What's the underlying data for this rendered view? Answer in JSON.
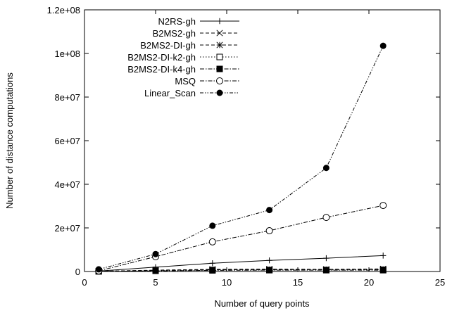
{
  "chart_data": {
    "type": "line",
    "title": "",
    "xlabel": "Number of query points",
    "ylabel": "Number of distance computations",
    "xlim": [
      0,
      25
    ],
    "ylim": [
      0,
      120000000
    ],
    "x_ticks": [
      0,
      5,
      10,
      15,
      20,
      25
    ],
    "x_tick_labels": [
      "0",
      "5",
      "10",
      "15",
      "20",
      "25"
    ],
    "y_ticks": [
      0,
      20000000,
      40000000,
      60000000,
      80000000,
      100000000,
      120000000
    ],
    "y_tick_labels": [
      "0",
      "2e+07",
      "4e+07",
      "6e+07",
      "8e+07",
      "1e+08",
      "1.2e+08"
    ],
    "legend_position": "top-left",
    "grid": false,
    "x": [
      1,
      5,
      9,
      13,
      17,
      21
    ],
    "series": [
      {
        "name": "N2RS-gh",
        "marker": "plus",
        "dash": "none",
        "values": [
          200000,
          2000000,
          3800000,
          5100000,
          6100000,
          7300000
        ]
      },
      {
        "name": "B2MS2-gh",
        "marker": "cross",
        "dash": "dashed",
        "values": [
          100000,
          600000,
          1000000,
          1100000,
          1000000,
          1200000
        ]
      },
      {
        "name": "B2MS2-DI-gh",
        "marker": "star",
        "dash": "dashed",
        "values": [
          100000,
          500000,
          800000,
          900000,
          900000,
          1000000
        ]
      },
      {
        "name": "B2MS2-DI-k2-gh",
        "marker": "open-square",
        "dash": "dotted",
        "values": [
          100000,
          400000,
          700000,
          700000,
          700000,
          800000
        ]
      },
      {
        "name": "B2MS2-DI-k4-gh",
        "marker": "filled-square",
        "dash": "dash-dot",
        "values": [
          50000,
          300000,
          500000,
          600000,
          600000,
          600000
        ]
      },
      {
        "name": "MSQ",
        "marker": "open-circle",
        "dash": "dash-dot",
        "values": [
          300000,
          6800000,
          13600000,
          18700000,
          24800000,
          30300000
        ]
      },
      {
        "name": "Linear_Scan",
        "marker": "filled-circle",
        "dash": "dash-dot-dot",
        "values": [
          1000000,
          8000000,
          21000000,
          28200000,
          47500000,
          103500000
        ]
      }
    ]
  }
}
